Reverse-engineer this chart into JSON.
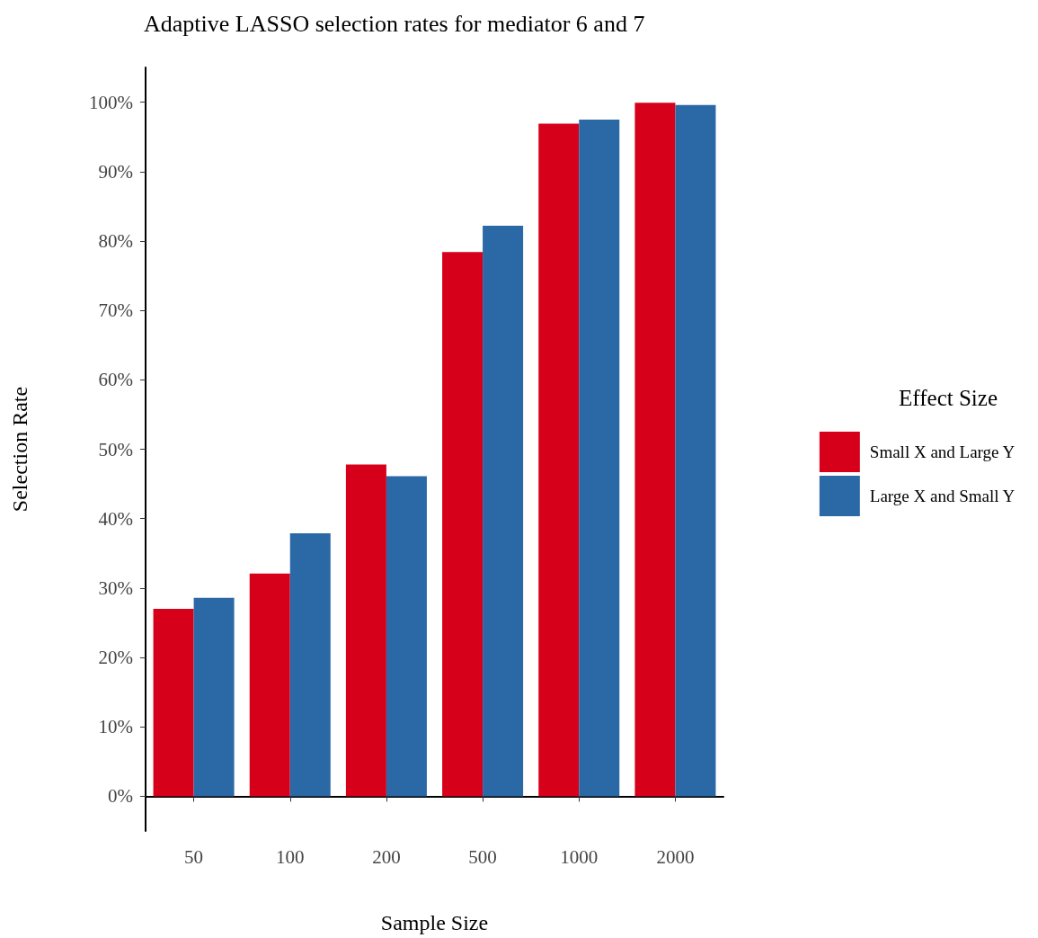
{
  "chart_data": {
    "type": "bar",
    "title": "Adaptive LASSO selection rates for mediator 6 and 7",
    "xlabel": "Sample Size",
    "ylabel": "Selection Rate",
    "legend_title": "Effect Size",
    "categories": [
      "50",
      "100",
      "200",
      "500",
      "1000",
      "2000"
    ],
    "series": [
      {
        "name": "Small X and Large Y",
        "color": "#d7001a",
        "values": [
          27,
          32.1,
          47.8,
          78.4,
          96.9,
          99.9
        ]
      },
      {
        "name": "Large X and Small Y",
        "color": "#2b68a6",
        "values": [
          28.6,
          37.9,
          46.1,
          82.2,
          97.5,
          99.6
        ]
      }
    ],
    "ylim": [
      -5,
      105
    ],
    "yticks": [
      {
        "value": 0,
        "label": "0%"
      },
      {
        "value": 10,
        "label": "10%"
      },
      {
        "value": 20,
        "label": "20%"
      },
      {
        "value": 30,
        "label": "30%"
      },
      {
        "value": 40,
        "label": "40%"
      },
      {
        "value": 50,
        "label": "50%"
      },
      {
        "value": 60,
        "label": "60%"
      },
      {
        "value": 70,
        "label": "70%"
      },
      {
        "value": 80,
        "label": "80%"
      },
      {
        "value": 90,
        "label": "90%"
      },
      {
        "value": 100,
        "label": "100%"
      }
    ],
    "grid": false,
    "legend": "right"
  }
}
